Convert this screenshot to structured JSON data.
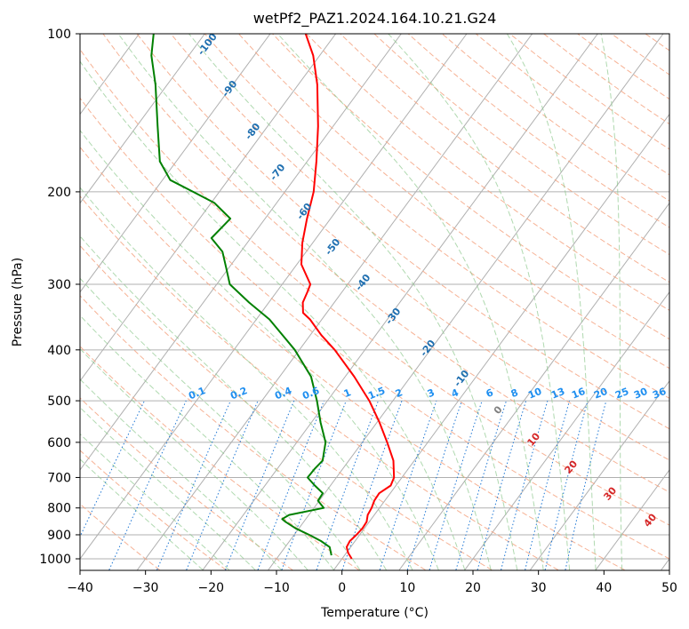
{
  "chart_data": {
    "type": "line",
    "title": "wetPf2_PAZ1.2024.164.10.21.G24",
    "xlabel": "Temperature (°C)",
    "ylabel": "Pressure (hPa)",
    "xlim": [
      -40,
      50
    ],
    "ylim": [
      1050,
      100
    ],
    "y_scale": "log",
    "skew": "skew-T log-p",
    "grid": true,
    "x_ticks": [
      "−40",
      "−30",
      "−20",
      "−10",
      "0",
      "10",
      "20",
      "30",
      "40",
      "50"
    ],
    "y_ticks": [
      "100",
      "200",
      "300",
      "400",
      "500",
      "600",
      "700",
      "800",
      "900",
      "1000"
    ],
    "series": [
      {
        "color": "#ff0000",
        "points": [
          [
            1000,
            1.5
          ],
          [
            975,
            0.3
          ],
          [
            950,
            -0.6
          ],
          [
            925,
            -0.8
          ],
          [
            900,
            -0.5
          ],
          [
            875,
            -0.3
          ],
          [
            850,
            -0.4
          ],
          [
            825,
            -1.0
          ],
          [
            800,
            -1.2
          ],
          [
            775,
            -1.6
          ],
          [
            750,
            -1.7
          ],
          [
            725,
            -0.8
          ],
          [
            700,
            -1.2
          ],
          [
            650,
            -3.2
          ],
          [
            600,
            -6.2
          ],
          [
            550,
            -9.6
          ],
          [
            500,
            -13.6
          ],
          [
            450,
            -18.6
          ],
          [
            400,
            -24.6
          ],
          [
            375,
            -28.3
          ],
          [
            350,
            -31.8
          ],
          [
            340,
            -33.6
          ],
          [
            325,
            -34.8
          ],
          [
            310,
            -35.3
          ],
          [
            300,
            -35.7
          ],
          [
            275,
            -39.3
          ],
          [
            250,
            -41.6
          ],
          [
            225,
            -43.6
          ],
          [
            200,
            -45.6
          ],
          [
            175,
            -48.6
          ],
          [
            150,
            -52.3
          ],
          [
            125,
            -57.1
          ],
          [
            110,
            -61.0
          ],
          [
            100,
            -64.6
          ]
        ]
      },
      {
        "color": "#008000",
        "points": [
          [
            985,
            -2.0
          ],
          [
            950,
            -3.2
          ],
          [
            925,
            -5.2
          ],
          [
            900,
            -7.7
          ],
          [
            875,
            -10.5
          ],
          [
            850,
            -12.8
          ],
          [
            840,
            -13.6
          ],
          [
            825,
            -13.0
          ],
          [
            800,
            -8.5
          ],
          [
            775,
            -10.2
          ],
          [
            750,
            -10.3
          ],
          [
            725,
            -12.4
          ],
          [
            700,
            -14.4
          ],
          [
            675,
            -14.3
          ],
          [
            650,
            -14.0
          ],
          [
            600,
            -15.6
          ],
          [
            550,
            -18.6
          ],
          [
            500,
            -21.6
          ],
          [
            450,
            -25.2
          ],
          [
            400,
            -30.7
          ],
          [
            350,
            -38.0
          ],
          [
            325,
            -43.0
          ],
          [
            300,
            -48.0
          ],
          [
            280,
            -50.3
          ],
          [
            260,
            -52.8
          ],
          [
            245,
            -56.0
          ],
          [
            225,
            -55.3
          ],
          [
            210,
            -59.5
          ],
          [
            200,
            -64.0
          ],
          [
            190,
            -68.8
          ],
          [
            175,
            -72.5
          ],
          [
            150,
            -76.8
          ],
          [
            125,
            -81.8
          ],
          [
            110,
            -85.7
          ],
          [
            100,
            -87.8
          ]
        ]
      }
    ],
    "dry_adiabat_labels": [
      "-100",
      "-90",
      "-80",
      "-70",
      "-60",
      "-50",
      "-40",
      "-30",
      "-20",
      "-10"
    ],
    "moist_adiabat_labels": [
      "0",
      "10",
      "20",
      "30",
      "40"
    ],
    "mixing_ratio_labels": [
      "0.1",
      "0.2",
      "0.4",
      "0.6",
      "1",
      "1.5",
      "2",
      "3",
      "4",
      "6",
      "8",
      "10",
      "13",
      "16",
      "20",
      "25",
      "30",
      "36"
    ],
    "mixing_ratio_values": [
      0.1,
      0.2,
      0.4,
      0.6,
      1,
      1.5,
      2,
      3,
      4,
      6,
      8,
      10,
      13,
      16,
      20,
      25,
      30,
      36
    ]
  }
}
